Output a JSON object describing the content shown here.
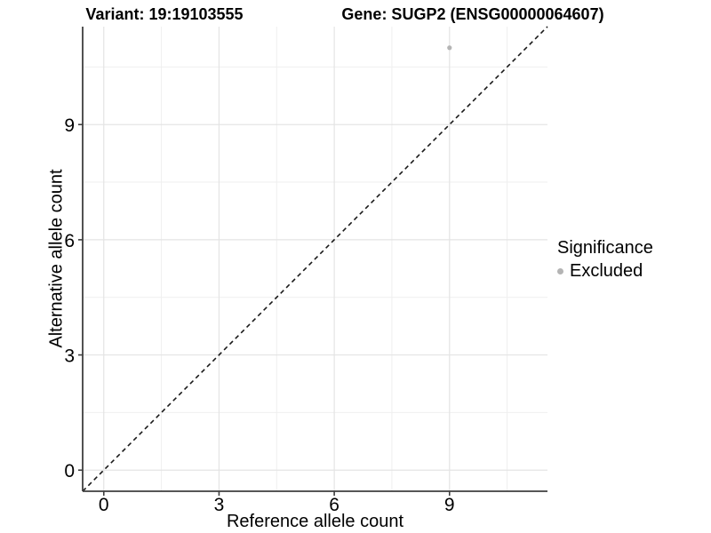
{
  "header": {
    "variant_title": "Variant: 19:19103555",
    "gene_title": "Gene: SUGP2 (ENSG00000064607)"
  },
  "chart_data": {
    "type": "scatter",
    "xlabel": "Reference allele count",
    "ylabel": "Alternative allele count",
    "xlim": [
      -0.55,
      11.55
    ],
    "ylim": [
      -0.55,
      11.55
    ],
    "x_ticks": [
      0,
      3,
      6,
      9
    ],
    "y_ticks": [
      0,
      3,
      6,
      9
    ],
    "x_minor_gridlines": [
      1.5,
      4.5,
      7.5,
      10.5
    ],
    "y_minor_gridlines": [
      1.5,
      4.5,
      7.5,
      10.5
    ],
    "grid": "major+minor",
    "legend_position": "right",
    "points": [
      {
        "x": 9,
        "y": 11,
        "series": "Excluded"
      }
    ],
    "identity_line": {
      "style": "dashed",
      "slope": 1,
      "intercept": 0
    }
  },
  "legend": {
    "title": "Significance",
    "entries": [
      {
        "label": "Excluded",
        "color": "#b4b4b4"
      }
    ]
  },
  "colors": {
    "background": "#ffffff",
    "grid_major": "#e4e4e4",
    "grid_minor": "#efefef",
    "axis_line": "#3f3f3f",
    "tick_mark": "#3f3f3f",
    "identity_line": "#1a1a1a",
    "point": "#b4b4b4",
    "text": "#000000"
  }
}
